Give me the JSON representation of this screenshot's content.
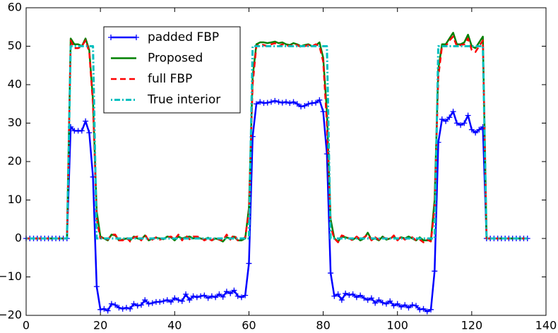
{
  "chart_data": {
    "type": "line",
    "x": [
      0,
      1,
      2,
      3,
      4,
      5,
      6,
      7,
      8,
      9,
      10,
      11,
      12,
      13,
      14,
      15,
      16,
      17,
      18,
      19,
      20,
      21,
      22,
      23,
      24,
      25,
      26,
      27,
      28,
      29,
      30,
      31,
      32,
      33,
      34,
      35,
      36,
      37,
      38,
      39,
      40,
      41,
      42,
      43,
      44,
      45,
      46,
      47,
      48,
      49,
      50,
      51,
      52,
      53,
      54,
      55,
      56,
      57,
      58,
      59,
      60,
      61,
      62,
      63,
      64,
      65,
      66,
      67,
      68,
      69,
      70,
      71,
      72,
      73,
      74,
      75,
      76,
      77,
      78,
      79,
      80,
      81,
      82,
      83,
      84,
      85,
      86,
      87,
      88,
      89,
      90,
      91,
      92,
      93,
      94,
      95,
      96,
      97,
      98,
      99,
      100,
      101,
      102,
      103,
      104,
      105,
      106,
      107,
      108,
      109,
      110,
      111,
      112,
      113,
      114,
      115,
      116,
      117,
      118,
      119,
      120,
      121,
      122,
      123,
      124,
      125,
      126,
      127,
      128,
      129,
      130,
      131,
      132,
      133,
      134,
      135
    ],
    "series": [
      {
        "name": "padded FBP",
        "color": "#0000ff",
        "values": [
          0,
          0,
          0,
          0,
          0,
          0,
          0,
          0,
          0,
          0,
          0,
          0,
          29,
          28,
          28,
          28,
          30.5,
          27.5,
          16,
          -12.5,
          -18.5,
          -18.3,
          -18.8,
          -17,
          -17.3,
          -18,
          -18.3,
          -18,
          -18.3,
          -17,
          -17.5,
          -17.3,
          -16,
          -17,
          -16.8,
          -16.5,
          -16.5,
          -16.3,
          -16,
          -16.5,
          -15.5,
          -16,
          -16.3,
          -14.5,
          -16,
          -15,
          -15.3,
          -15,
          -14.8,
          -15.5,
          -15,
          -15.3,
          -14.5,
          -15.2,
          -13.8,
          -14.3,
          -13.5,
          -15,
          -15.3,
          -14.8,
          -6.5,
          26.5,
          35,
          35.5,
          35.2,
          35.3,
          35.5,
          35.8,
          35.5,
          35.3,
          35.5,
          35.2,
          35.5,
          35,
          34.3,
          34.5,
          35,
          35.2,
          35.3,
          36,
          33,
          22,
          -9,
          -15,
          -14.5,
          -16,
          -14.3,
          -14.7,
          -14.5,
          -15.3,
          -14.8,
          -15.5,
          -16,
          -15.5,
          -16.8,
          -16,
          -16.7,
          -17,
          -16.3,
          -17.5,
          -17,
          -17.8,
          -17.3,
          -18,
          -17.3,
          -17.5,
          -18.5,
          -18.3,
          -19,
          -18.5,
          -8.5,
          25,
          31,
          30.5,
          31.5,
          33,
          30,
          29.5,
          30,
          32,
          28.3,
          27.5,
          28.3,
          29,
          0,
          0,
          0,
          0,
          0,
          0,
          0,
          0,
          0,
          0,
          0,
          0
        ]
      },
      {
        "name": "Proposed",
        "color": "#008000",
        "values": [
          0,
          0,
          0,
          0,
          0,
          0,
          0,
          0,
          0,
          0,
          0,
          0,
          52,
          50.5,
          50.5,
          50,
          52,
          49,
          36,
          7,
          0.5,
          0,
          -0.5,
          1,
          0.8,
          -0.5,
          -0.3,
          0,
          -0.5,
          0.5,
          0,
          -0.3,
          0.8,
          -0.5,
          0,
          0.2,
          0,
          -0.2,
          0.5,
          0.3,
          -0.5,
          0.5,
          0,
          0.3,
          0.5,
          0,
          0.3,
          0,
          -0.3,
          0.2,
          -0.5,
          0,
          -0.3,
          -0.8,
          0.3,
          0,
          0.5,
          -0.5,
          -0.5,
          0,
          8,
          42,
          50.5,
          51,
          51,
          50.8,
          51,
          51.2,
          50.8,
          51,
          50.5,
          50.3,
          50.8,
          50.5,
          50,
          50.3,
          50.5,
          50,
          50.2,
          51,
          47,
          33,
          5,
          0,
          -0.8,
          0.5,
          0.3,
          0,
          -0.3,
          0.3,
          -0.5,
          0,
          1.5,
          -0.3,
          0,
          -0.5,
          0.5,
          -0.3,
          0,
          0.5,
          -0.3,
          0.3,
          0,
          0.5,
          0,
          -0.5,
          0.3,
          -0.5,
          -0.5,
          -0.5,
          10,
          44,
          50.5,
          50.5,
          52,
          53.5,
          50.5,
          50.5,
          51,
          53,
          50,
          49.5,
          51,
          52.5,
          0,
          0,
          0,
          0,
          0,
          0,
          0,
          0,
          0,
          0,
          0,
          0
        ]
      },
      {
        "name": "full FBP",
        "color": "#ff0000",
        "values": [
          0,
          0,
          0,
          0,
          0,
          0,
          0,
          0,
          0,
          0,
          0,
          0,
          51.5,
          49.5,
          49.5,
          50,
          51.5,
          48.5,
          35,
          5,
          0,
          0.3,
          -0.3,
          1,
          1,
          -0.5,
          -0.5,
          0.3,
          -0.8,
          0.3,
          0.5,
          -0.5,
          1,
          -0.5,
          -0.3,
          0.3,
          -0.3,
          0,
          0.3,
          0.5,
          -0.3,
          1,
          -0.5,
          0.8,
          -0.2,
          0.5,
          0.5,
          0.3,
          -0.5,
          0,
          -0.5,
          0.3,
          -0.3,
          -0.5,
          1,
          -0.3,
          1,
          -0.5,
          -0.3,
          0.3,
          7,
          40,
          50,
          50.5,
          50.3,
          50,
          50.5,
          50.8,
          50,
          50.5,
          50.3,
          50,
          50.5,
          50.3,
          49.8,
          50,
          50.3,
          50,
          50.5,
          50,
          46,
          30,
          3,
          0,
          -1,
          0.8,
          0.5,
          0,
          -0.5,
          0.5,
          -0.3,
          0.3,
          1,
          -0.5,
          0.3,
          -0.3,
          0.3,
          0,
          -0.3,
          0.8,
          -0.5,
          0.5,
          -0.3,
          0.3,
          0.3,
          -0.5,
          -0.3,
          -1,
          -0.3,
          -0.8,
          8,
          42,
          50,
          50,
          51.5,
          52.5,
          50,
          50.3,
          50.5,
          52,
          49,
          48.5,
          50,
          51.5,
          0,
          0,
          0,
          0,
          0,
          0,
          0,
          0,
          0,
          0,
          0,
          0
        ]
      },
      {
        "name": "True interior",
        "color": "#00bfbf",
        "values": [
          0,
          0,
          0,
          0,
          0,
          0,
          0,
          0,
          0,
          0,
          0,
          0,
          50,
          50,
          50,
          50,
          50,
          50,
          50,
          0,
          0,
          0,
          0,
          0,
          0,
          0,
          0,
          0,
          0,
          0,
          0,
          0,
          0,
          0,
          0,
          0,
          0,
          0,
          0,
          0,
          0,
          0,
          0,
          0,
          0,
          0,
          0,
          0,
          0,
          0,
          0,
          0,
          0,
          0,
          0,
          0,
          0,
          0,
          0,
          0,
          0,
          50,
          50,
          50,
          50,
          50,
          50,
          50,
          50,
          50,
          50,
          50,
          50,
          50,
          50,
          50,
          50,
          50,
          50,
          50,
          50,
          50,
          0,
          0,
          0,
          0,
          0,
          0,
          0,
          0,
          0,
          0,
          0,
          0,
          0,
          0,
          0,
          0,
          0,
          0,
          0,
          0,
          0,
          0,
          0,
          0,
          0,
          0,
          0,
          0,
          0,
          50,
          50,
          50,
          50,
          50,
          50,
          50,
          50,
          50,
          50,
          50,
          50,
          50,
          0,
          0,
          0,
          0,
          0,
          0,
          0,
          0,
          0,
          0,
          0,
          0
        ]
      }
    ],
    "xlim": [
      0,
      140
    ],
    "xticks": [
      0,
      20,
      40,
      60,
      80,
      100,
      120,
      140
    ],
    "ylim": [
      -20,
      60
    ],
    "yticks": [
      {
        "value": -20,
        "label": "−20"
      },
      {
        "value": -10,
        "label": "−10"
      },
      0,
      10,
      20,
      30,
      40,
      50,
      60
    ],
    "legend": "upper left",
    "grid": false
  }
}
